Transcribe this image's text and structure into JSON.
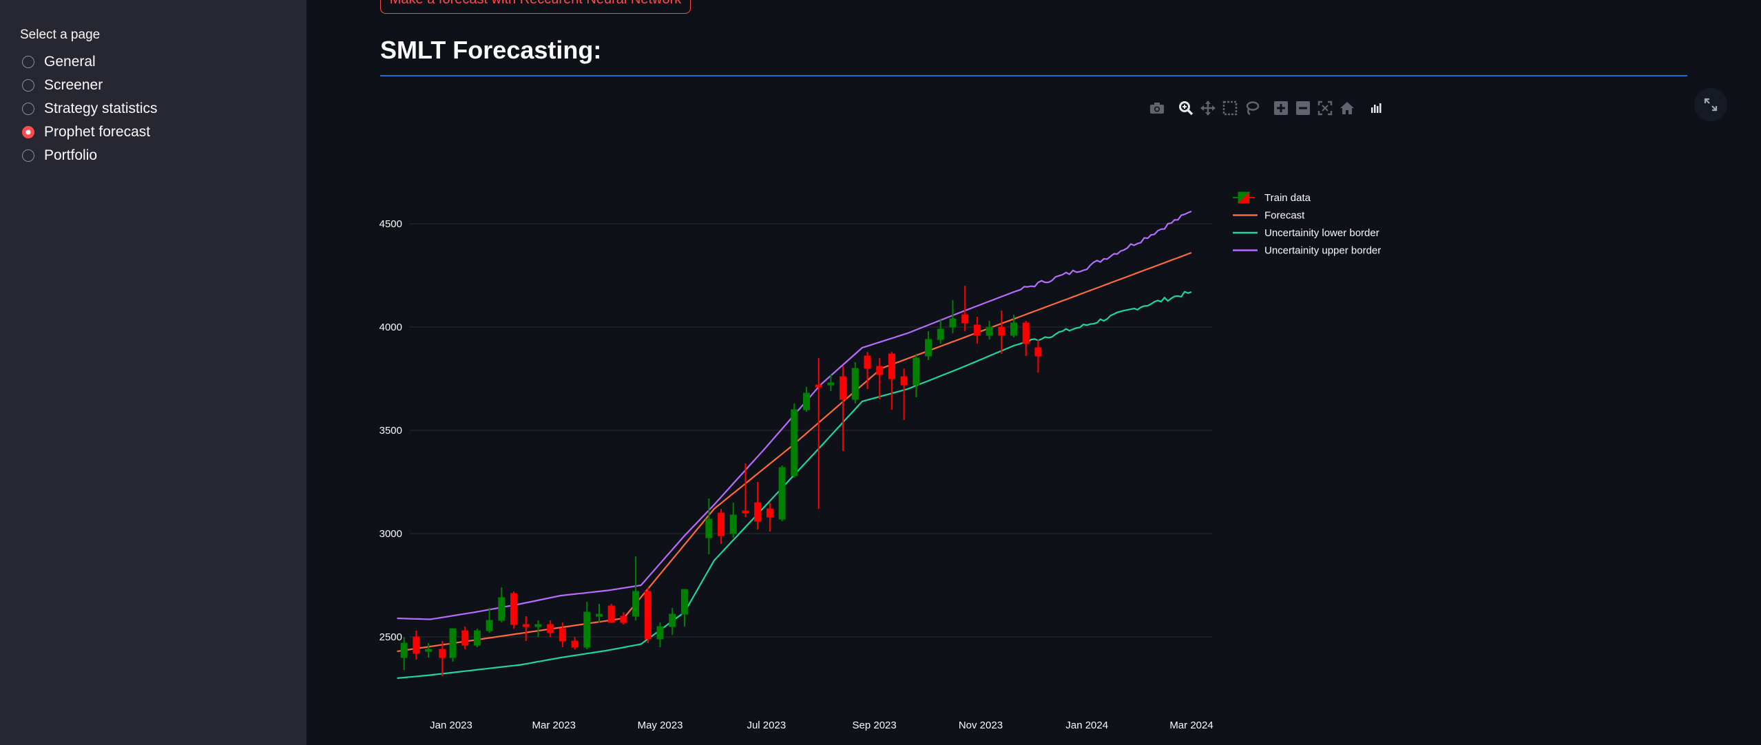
{
  "sidebar": {
    "title": "Select a page",
    "items": [
      {
        "label": "General",
        "selected": false
      },
      {
        "label": "Screener",
        "selected": false
      },
      {
        "label": "Strategy statistics",
        "selected": false
      },
      {
        "label": "Prophet forecast",
        "selected": true
      },
      {
        "label": "Portfolio",
        "selected": false
      }
    ]
  },
  "main": {
    "top_button_label": "Make a forecast with Reccurent Neural Network",
    "page_title": "SMLT Forecasting:"
  },
  "colors": {
    "accent": "#ff4b4b",
    "title_rule": "#1c6cd6",
    "forecast": "#ff6a3d",
    "lower": "#1fd6a0",
    "upper": "#b86cff",
    "candle_up": "#008000",
    "candle_down": "#ff0000"
  },
  "modebar_icons": [
    "camera-icon",
    "zoom-icon",
    "pan-icon",
    "box-select-icon",
    "lasso-icon",
    "zoom-in-icon",
    "zoom-out-icon",
    "autoscale-icon",
    "reset-axes-icon",
    "plotly-logo-icon"
  ],
  "chart_data": {
    "type": "line",
    "title": "",
    "xlabel": "",
    "ylabel": "",
    "x_range": [
      "2022-12-01",
      "2024-03-01"
    ],
    "ylim": [
      2300,
      4700
    ],
    "y_ticks": [
      2500,
      3000,
      3500,
      4000,
      4500
    ],
    "x_ticks": [
      {
        "date": "2023-01-01",
        "label": "Jan 2023"
      },
      {
        "date": "2023-03-01",
        "label": "Mar 2023"
      },
      {
        "date": "2023-05-01",
        "label": "May 2023"
      },
      {
        "date": "2023-07-01",
        "label": "Jul 2023"
      },
      {
        "date": "2023-09-01",
        "label": "Sep 2023"
      },
      {
        "date": "2023-11-01",
        "label": "Nov 2023"
      },
      {
        "date": "2024-01-01",
        "label": "Jan 2024"
      },
      {
        "date": "2024-03-01",
        "label": "Mar 2024"
      }
    ],
    "grid": true,
    "legend_position": "top-right",
    "series": [
      {
        "name": "Forecast",
        "x": [
          "2022-12-01",
          "2023-04-10",
          "2023-06-01",
          "2023-07-15",
          "2023-09-05",
          "2024-03-01"
        ],
        "y": [
          2430,
          2590,
          3120,
          3420,
          3800,
          4360
        ]
      },
      {
        "name": "Uncertainity lower border",
        "x": [
          "2022-12-01",
          "2022-12-20",
          "2023-01-15",
          "2023-02-10",
          "2023-03-05",
          "2023-04-01",
          "2023-04-20",
          "2023-05-15",
          "2023-06-01",
          "2023-07-01",
          "2023-08-01",
          "2023-08-25",
          "2023-09-20",
          "2023-10-20",
          "2023-11-20",
          "2024-01-01",
          "2024-02-01",
          "2024-03-01"
        ],
        "y": [
          2300,
          2315,
          2340,
          2365,
          2400,
          2435,
          2465,
          2620,
          2870,
          3140,
          3420,
          3640,
          3700,
          3800,
          3910,
          4010,
          4100,
          4170
        ]
      },
      {
        "name": "Uncertainity upper border",
        "x": [
          "2022-12-01",
          "2022-12-20",
          "2023-01-15",
          "2023-02-10",
          "2023-03-05",
          "2023-04-01",
          "2023-04-20",
          "2023-05-15",
          "2023-06-01",
          "2023-07-01",
          "2023-08-01",
          "2023-08-25",
          "2023-09-20",
          "2023-10-20",
          "2023-11-20",
          "2024-01-01",
          "2024-02-01",
          "2024-03-01"
        ],
        "y": [
          2590,
          2585,
          2620,
          2660,
          2700,
          2725,
          2750,
          2990,
          3140,
          3420,
          3720,
          3900,
          3970,
          4070,
          4170,
          4290,
          4420,
          4560
        ]
      }
    ],
    "candles": {
      "name": "Train data",
      "points": [
        {
          "x": "2022-12-05",
          "o": 2400,
          "h": 2500,
          "l": 2340,
          "c": 2470
        },
        {
          "x": "2022-12-12",
          "o": 2500,
          "h": 2530,
          "l": 2390,
          "c": 2420
        },
        {
          "x": "2022-12-19",
          "o": 2430,
          "h": 2470,
          "l": 2400,
          "c": 2440
        },
        {
          "x": "2022-12-27",
          "o": 2440,
          "h": 2480,
          "l": 2310,
          "c": 2400
        },
        {
          "x": "2023-01-02",
          "o": 2400,
          "h": 2540,
          "l": 2380,
          "c": 2540
        },
        {
          "x": "2023-01-09",
          "o": 2530,
          "h": 2550,
          "l": 2440,
          "c": 2460
        },
        {
          "x": "2023-01-16",
          "o": 2460,
          "h": 2540,
          "l": 2450,
          "c": 2530
        },
        {
          "x": "2023-01-23",
          "o": 2530,
          "h": 2640,
          "l": 2520,
          "c": 2580
        },
        {
          "x": "2023-01-30",
          "o": 2580,
          "h": 2740,
          "l": 2570,
          "c": 2690
        },
        {
          "x": "2023-02-06",
          "o": 2710,
          "h": 2720,
          "l": 2540,
          "c": 2560
        },
        {
          "x": "2023-02-13",
          "o": 2560,
          "h": 2600,
          "l": 2480,
          "c": 2550
        },
        {
          "x": "2023-02-20",
          "o": 2550,
          "h": 2580,
          "l": 2500,
          "c": 2560
        },
        {
          "x": "2023-02-27",
          "o": 2560,
          "h": 2580,
          "l": 2500,
          "c": 2520
        },
        {
          "x": "2023-03-06",
          "o": 2540,
          "h": 2570,
          "l": 2450,
          "c": 2480
        },
        {
          "x": "2023-03-13",
          "o": 2480,
          "h": 2500,
          "l": 2440,
          "c": 2450
        },
        {
          "x": "2023-03-20",
          "o": 2450,
          "h": 2670,
          "l": 2440,
          "c": 2620
        },
        {
          "x": "2023-03-27",
          "o": 2600,
          "h": 2660,
          "l": 2570,
          "c": 2610
        },
        {
          "x": "2023-04-03",
          "o": 2650,
          "h": 2660,
          "l": 2570,
          "c": 2570
        },
        {
          "x": "2023-04-10",
          "o": 2600,
          "h": 2620,
          "l": 2560,
          "c": 2570
        },
        {
          "x": "2023-04-17",
          "o": 2600,
          "h": 2890,
          "l": 2580,
          "c": 2720
        },
        {
          "x": "2023-04-24",
          "o": 2720,
          "h": 2740,
          "l": 2470,
          "c": 2490
        },
        {
          "x": "2023-05-01",
          "o": 2490,
          "h": 2570,
          "l": 2450,
          "c": 2550
        },
        {
          "x": "2023-05-08",
          "o": 2550,
          "h": 2640,
          "l": 2510,
          "c": 2610
        },
        {
          "x": "2023-05-15",
          "o": 2610,
          "h": 2730,
          "l": 2550,
          "c": 2730
        },
        {
          "x": "2023-05-29",
          "o": 2980,
          "h": 3170,
          "l": 2900,
          "c": 3070
        },
        {
          "x": "2023-06-05",
          "o": 3100,
          "h": 3120,
          "l": 2950,
          "c": 2990
        },
        {
          "x": "2023-06-12",
          "o": 3000,
          "h": 3150,
          "l": 2980,
          "c": 3090
        },
        {
          "x": "2023-06-19",
          "o": 3110,
          "h": 3340,
          "l": 3080,
          "c": 3100
        },
        {
          "x": "2023-06-26",
          "o": 3150,
          "h": 3250,
          "l": 3020,
          "c": 3060
        },
        {
          "x": "2023-07-03",
          "o": 3120,
          "h": 3150,
          "l": 3010,
          "c": 3080
        },
        {
          "x": "2023-07-10",
          "o": 3070,
          "h": 3330,
          "l": 3060,
          "c": 3320
        },
        {
          "x": "2023-07-17",
          "o": 3280,
          "h": 3630,
          "l": 3270,
          "c": 3600
        },
        {
          "x": "2023-07-24",
          "o": 3600,
          "h": 3710,
          "l": 3590,
          "c": 3680
        },
        {
          "x": "2023-07-31",
          "o": 3720,
          "h": 3850,
          "l": 3120,
          "c": 3710
        },
        {
          "x": "2023-08-07",
          "o": 3720,
          "h": 3770,
          "l": 3690,
          "c": 3730
        },
        {
          "x": "2023-08-14",
          "o": 3760,
          "h": 3810,
          "l": 3400,
          "c": 3650
        },
        {
          "x": "2023-08-21",
          "o": 3650,
          "h": 3830,
          "l": 3630,
          "c": 3800
        },
        {
          "x": "2023-08-28",
          "o": 3860,
          "h": 3880,
          "l": 3700,
          "c": 3800
        },
        {
          "x": "2023-09-04",
          "o": 3810,
          "h": 3850,
          "l": 3650,
          "c": 3770
        },
        {
          "x": "2023-09-11",
          "o": 3870,
          "h": 3880,
          "l": 3600,
          "c": 3750
        },
        {
          "x": "2023-09-18",
          "o": 3760,
          "h": 3800,
          "l": 3550,
          "c": 3720
        },
        {
          "x": "2023-09-25",
          "o": 3720,
          "h": 3870,
          "l": 3660,
          "c": 3850
        },
        {
          "x": "2023-10-02",
          "o": 3860,
          "h": 3980,
          "l": 3840,
          "c": 3940
        },
        {
          "x": "2023-10-09",
          "o": 3940,
          "h": 4040,
          "l": 3920,
          "c": 3990
        },
        {
          "x": "2023-10-16",
          "o": 4000,
          "h": 4130,
          "l": 3970,
          "c": 4040
        },
        {
          "x": "2023-10-23",
          "o": 4060,
          "h": 4200,
          "l": 3980,
          "c": 4020
        },
        {
          "x": "2023-10-30",
          "o": 4010,
          "h": 4050,
          "l": 3920,
          "c": 3960
        },
        {
          "x": "2023-11-06",
          "o": 3960,
          "h": 4030,
          "l": 3940,
          "c": 4000
        },
        {
          "x": "2023-11-13",
          "o": 4000,
          "h": 4080,
          "l": 3870,
          "c": 3960
        },
        {
          "x": "2023-11-20",
          "o": 3960,
          "h": 4060,
          "l": 3950,
          "c": 4020
        },
        {
          "x": "2023-11-27",
          "o": 4020,
          "h": 4030,
          "l": 3860,
          "c": 3920
        },
        {
          "x": "2023-12-04",
          "o": 3900,
          "h": 3940,
          "l": 3780,
          "c": 3860
        }
      ]
    }
  }
}
